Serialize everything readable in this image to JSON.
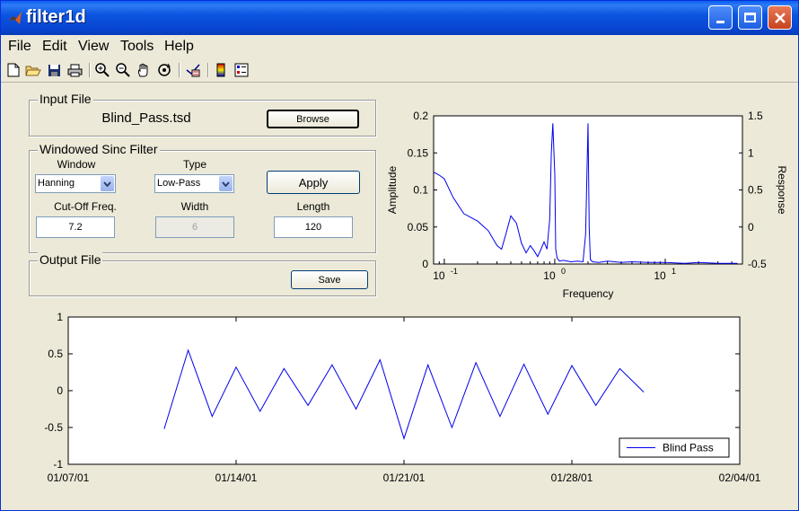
{
  "window": {
    "title": "filter1d"
  },
  "menu": [
    "File",
    "Edit",
    "View",
    "Tools",
    "Help"
  ],
  "toolbar_icons": [
    "new-file-icon",
    "open-folder-icon",
    "save-icon",
    "print-icon",
    "zoom-in-icon",
    "zoom-out-icon",
    "pan-hand-icon",
    "rotate-3d-icon",
    "insert-legend-icon",
    "colorbar-icon",
    "legend-icon"
  ],
  "input_file": {
    "frame_title": "Input File",
    "filename": "Blind_Pass.tsd",
    "browse_label": "Browse"
  },
  "filter": {
    "frame_title": "Windowed Sinc Filter",
    "window_label": "Window",
    "window_value": "Hanning",
    "type_label": "Type",
    "type_value": "Low-Pass",
    "apply_label": "Apply",
    "cutoff_label": "Cut-Off Freq.",
    "cutoff_value": "7.2",
    "width_label": "Width",
    "width_value": "6",
    "length_label": "Length",
    "length_value": "120"
  },
  "output_file": {
    "frame_title": "Output File",
    "save_label": "Save"
  },
  "chart_data": [
    {
      "type": "line",
      "xlabel": "Frequency",
      "ylabel": "Amplitude",
      "y2label": "Response",
      "xscale": "log",
      "xlim": [
        0.08,
        50
      ],
      "ylim": [
        0,
        0.2
      ],
      "y2lim": [
        -0.5,
        1.5
      ],
      "x_tick_labels": [
        "10^-1",
        "10^0",
        "10^1"
      ],
      "y_ticks": [
        "0",
        "0.05",
        "0.1",
        "0.15",
        "0.2"
      ],
      "y2_ticks": [
        "-0.5",
        "0",
        "0.5",
        "1",
        "1.5"
      ],
      "series": [
        {
          "x": [
            0.08,
            0.09,
            0.1,
            0.12,
            0.15,
            0.2,
            0.25,
            0.3,
            0.33,
            0.36,
            0.4,
            0.45,
            0.5,
            0.55,
            0.6,
            0.65,
            0.7,
            0.75,
            0.8,
            0.85,
            0.9,
            0.93,
            0.96,
            1.0,
            1.02,
            1.05,
            1.1,
            1.2,
            1.4,
            1.6,
            1.8,
            1.9,
            2.0,
            2.05,
            2.1,
            2.2,
            2.5,
            3,
            4,
            5,
            7,
            10,
            15,
            20,
            30,
            45
          ],
          "y": [
            0.124,
            0.12,
            0.115,
            0.09,
            0.068,
            0.058,
            0.045,
            0.025,
            0.02,
            0.04,
            0.065,
            0.055,
            0.028,
            0.015,
            0.025,
            0.018,
            0.01,
            0.02,
            0.03,
            0.02,
            0.06,
            0.15,
            0.19,
            0.12,
            0.02,
            0.008,
            0.004,
            0.005,
            0.003,
            0.004,
            0.003,
            0.04,
            0.19,
            0.05,
            0.006,
            0.003,
            0.002,
            0.004,
            0.002,
            0.003,
            0.002,
            0.002,
            0.001,
            0.002,
            0.001,
            0.001
          ]
        }
      ]
    },
    {
      "type": "line",
      "x_tick_labels": [
        "01/07/01",
        "01/14/01",
        "01/21/01",
        "01/28/01",
        "02/04/01"
      ],
      "ylim": [
        -1,
        1
      ],
      "y_ticks": [
        "-1",
        "-0.5",
        "0",
        "0.5",
        "1"
      ],
      "legend": "Blind Pass",
      "legend_position": "bottom-right",
      "series": [
        {
          "name": "Blind Pass",
          "x": [
            "01/11/01",
            "01/12/01",
            "01/13/01",
            "01/14/01",
            "01/15/01",
            "01/16/01",
            "01/17/01",
            "01/18/01",
            "01/19/01",
            "01/20/01",
            "01/21/01",
            "01/22/01",
            "01/23/01",
            "01/24/01",
            "01/25/01",
            "01/26/01",
            "01/27/01",
            "01/28/01",
            "01/29/01",
            "01/30/01",
            "01/31/01"
          ],
          "y": [
            -0.52,
            0.55,
            -0.35,
            0.32,
            -0.28,
            0.3,
            -0.2,
            0.35,
            -0.25,
            0.42,
            -0.65,
            0.35,
            -0.5,
            0.38,
            -0.35,
            0.36,
            -0.32,
            0.34,
            -0.2,
            0.3,
            -0.02
          ]
        }
      ]
    }
  ]
}
